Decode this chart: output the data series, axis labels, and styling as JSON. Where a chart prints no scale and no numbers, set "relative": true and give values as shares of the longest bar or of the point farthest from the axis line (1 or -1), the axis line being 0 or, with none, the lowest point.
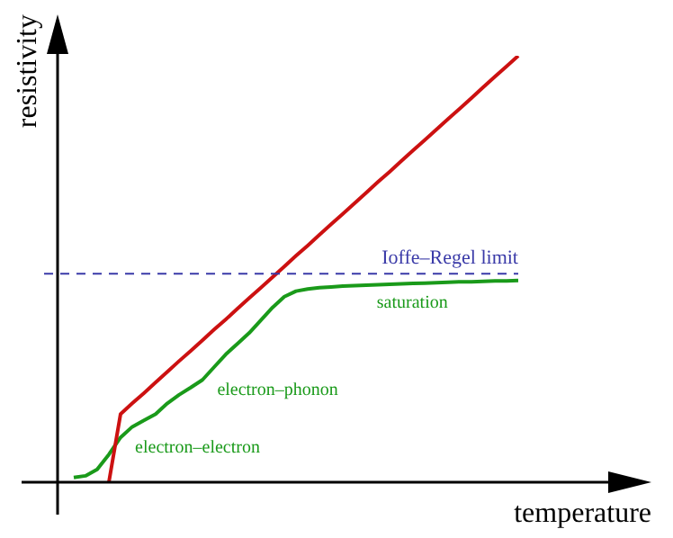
{
  "chart_data": {
    "type": "line",
    "relative": true,
    "xlabel": "temperature",
    "ylabel": "resistivity",
    "tick_labels": false,
    "categories": [
      null,
      null,
      null,
      null,
      null,
      null,
      null,
      null,
      null,
      null,
      null,
      null,
      null,
      null,
      null,
      null,
      null,
      null,
      null,
      null,
      null,
      null,
      null,
      null,
      null,
      null,
      null,
      null,
      null,
      null,
      null,
      null,
      null,
      null,
      null,
      null,
      null,
      null,
      null,
      null
    ],
    "series": [
      {
        "color": "#cc1111",
        "values": [
          null,
          null,
          null,
          null,
          0,
          0.16,
          0.185,
          0.209,
          0.234,
          0.259,
          0.284,
          0.308,
          0.333,
          0.358,
          0.382,
          0.407,
          0.432,
          0.456,
          0.481,
          0.506,
          0.531,
          0.555,
          0.58,
          0.605,
          0.629,
          0.654,
          0.679,
          0.704,
          0.728,
          0.753,
          0.778,
          0.802,
          0.827,
          0.852,
          0.876,
          0.901,
          0.926,
          0.951,
          0.975,
          1
        ]
      },
      {
        "color": "#1a9a1a",
        "values": [
          null,
          0.011,
          0.015,
          0.03,
          0.065,
          0.105,
          0.13,
          0.145,
          0.16,
          0.185,
          0.205,
          0.222,
          0.24,
          0.27,
          0.3,
          0.325,
          0.35,
          0.38,
          0.41,
          0.435,
          0.448,
          0.453,
          0.456,
          0.458,
          0.46,
          0.461,
          0.462,
          0.463,
          0.464,
          0.465,
          0.466,
          0.467,
          0.468,
          0.469,
          0.47,
          0.47,
          0.471,
          0.472,
          0.472,
          0.473
        ]
      }
    ],
    "ref_lines": [
      {
        "axis": "y",
        "value": 0.489,
        "label": "Ioffe–Regel limit",
        "color": "#3a3aa8",
        "line_style": "dashed"
      }
    ],
    "annotations": [
      "saturation",
      "electron–phonon",
      "electron–electron"
    ]
  }
}
